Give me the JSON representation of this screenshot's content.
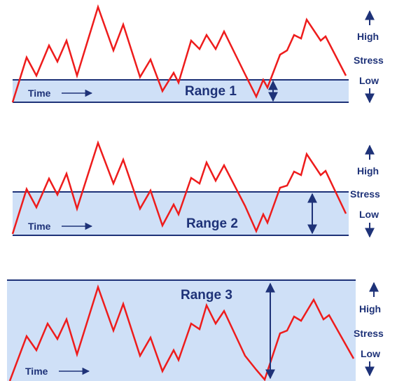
{
  "colors": {
    "signal": "#ee1c1c",
    "band_fill": "#cfe0f7",
    "band_line": "#1e3278",
    "text": "#1e3278"
  },
  "labels": {
    "time": "Time",
    "high": "High",
    "stress": "Stress",
    "low": "Low"
  },
  "ranges": [
    {
      "label": "Range 1"
    },
    {
      "label": "Range 2"
    },
    {
      "label": "Range 3"
    }
  ]
}
